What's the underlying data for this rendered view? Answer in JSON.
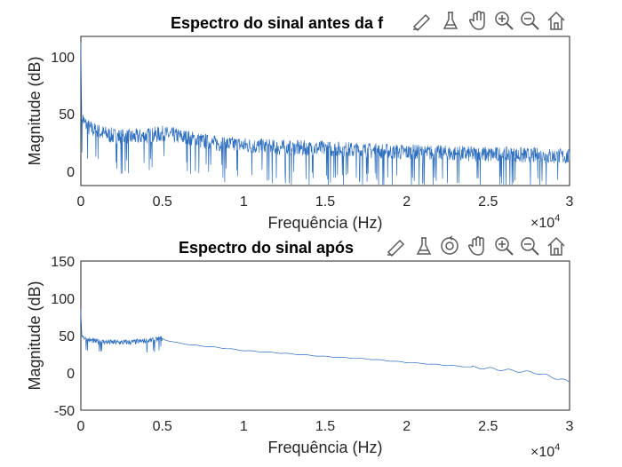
{
  "figure": {
    "colors": {
      "line": "#2f6fbf",
      "axes": "#262626",
      "background": "#ffffff",
      "toolbar_icon": "#5a5a5a"
    }
  },
  "plots": [
    {
      "title": "Espectro do sinal antes da f",
      "xlabel": "Frequência (Hz)",
      "ylabel": "Magnitude (dB)",
      "x_exponent": "×10",
      "x_exponent_power": "4",
      "x_ticks": [
        "0",
        "0.5",
        "1",
        "1.5",
        "2",
        "2.5",
        "3"
      ],
      "y_ticks": [
        "0",
        "50",
        "100"
      ],
      "toolbar": [
        "brush-icon",
        "data-tips-icon",
        "pan-icon",
        "zoom-in-icon",
        "zoom-out-icon",
        "home-icon"
      ]
    },
    {
      "title": "Espectro do sinal após",
      "xlabel": "Frequência (Hz)",
      "ylabel": "Magnitude (dB)",
      "x_exponent": "×10",
      "x_exponent_power": "4",
      "x_ticks": [
        "0",
        "0.5",
        "1",
        "1.5",
        "2",
        "2.5",
        "3"
      ],
      "y_ticks": [
        "-50",
        "0",
        "50",
        "100",
        "150"
      ],
      "toolbar": [
        "brush-icon",
        "data-tips-icon",
        "rotate-icon",
        "pan-icon",
        "zoom-in-icon",
        "zoom-out-icon",
        "home-icon"
      ]
    }
  ],
  "chart_data": [
    {
      "type": "line",
      "title": "Espectro do sinal antes da f",
      "xlabel": "Frequência (Hz)",
      "ylabel": "Magnitude (dB)",
      "xlim": [
        0,
        30000
      ],
      "ylim": [
        -10,
        120
      ],
      "grid": false,
      "series": [
        {
          "x": [
            0,
            50,
            200,
            500,
            1000,
            2000,
            3000,
            4000,
            5000,
            6000,
            7000,
            8000,
            10000,
            12000,
            15000,
            18000,
            20000,
            22000,
            25000,
            28000,
            30000
          ],
          "y": [
            115,
            52,
            45,
            40,
            37,
            33,
            32,
            33,
            35,
            33,
            30,
            27,
            25,
            23,
            22,
            20,
            19,
            18,
            17,
            16,
            15
          ],
          "noise_amplitude_db": 12
        }
      ]
    },
    {
      "type": "line",
      "title": "Espectro do sinal após",
      "xlabel": "Frequência (Hz)",
      "ylabel": "Magnitude (dB)",
      "xlim": [
        0,
        30000
      ],
      "ylim": [
        -50,
        150
      ],
      "grid": false,
      "series": [
        {
          "x": [
            0,
            50,
            200,
            500,
            1000,
            2000,
            3000,
            4000,
            4500,
            5000,
            5200,
            6000,
            7000,
            8000,
            10000,
            12000,
            15000,
            18000,
            20000,
            22000,
            25000,
            27000,
            28000,
            29000,
            30000
          ],
          "y": [
            85,
            52,
            47,
            44,
            42,
            41,
            41,
            43,
            44,
            46,
            44,
            40,
            37,
            35,
            30,
            27,
            22,
            18,
            14,
            11,
            6,
            2,
            0,
            -6,
            -12
          ],
          "noise_until_x": 5000,
          "noise_amplitude_db": 6
        }
      ]
    }
  ]
}
